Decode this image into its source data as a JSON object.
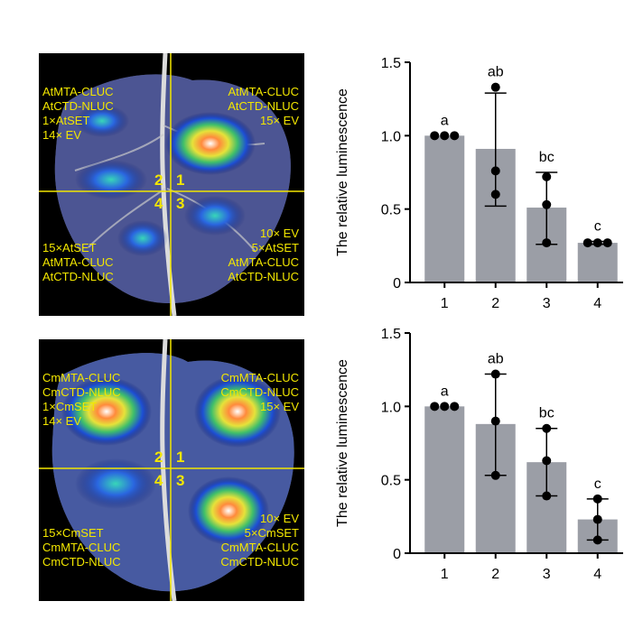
{
  "figure": {
    "top_image": {
      "labels": {
        "top_left": [
          "AtMTA-CLUC",
          "AtCTD-NLUC",
          "1×AtSET",
          "14× EV"
        ],
        "top_right": [
          "AtMTA-CLUC",
          "AtCTD-NLUC",
          "15× EV"
        ],
        "bottom_left": [
          "15×AtSET",
          "AtMTA-CLUC",
          "AtCTD-NLUC"
        ],
        "bottom_right": [
          "10× EV",
          "5×AtSET",
          "AtMTA-CLUC",
          "AtCTD-NLUC"
        ]
      },
      "quadrant_numbers": {
        "q2": "2",
        "q1": "1",
        "q4": "4",
        "q3": "3"
      }
    },
    "bottom_image": {
      "labels": {
        "top_left": [
          "CmMTA-CLUC",
          "CmCTD-NLUC",
          "1×CmSET",
          "14× EV"
        ],
        "top_right": [
          "CmMTA-CLUC",
          "CmCTD-NLUC",
          "15× EV"
        ],
        "bottom_left": [
          "15×CmSET",
          "CmMTA-CLUC",
          "CmCTD-NLUC"
        ],
        "bottom_right": [
          "10× EV",
          "5×CmSET",
          "CmMTA-CLUC",
          "CmCTD-NLUC"
        ]
      },
      "quadrant_numbers": {
        "q2": "2",
        "q1": "1",
        "q4": "4",
        "q3": "3"
      }
    }
  },
  "colors": {
    "bar": "#9b9ea6",
    "point": "#000000",
    "axis": "#000000",
    "leaf_text": "#f2e600",
    "crosshair": "#f2e600"
  },
  "chart_data": [
    {
      "type": "bar",
      "categories": [
        "1",
        "2",
        "3",
        "4"
      ],
      "values": [
        1.0,
        0.91,
        0.51,
        0.27
      ],
      "error_low": [
        1.0,
        0.52,
        0.26,
        0.26
      ],
      "error_high": [
        1.0,
        1.29,
        0.75,
        0.28
      ],
      "points": [
        [
          1.0,
          1.0,
          1.0
        ],
        [
          1.33,
          0.76,
          0.6
        ],
        [
          0.72,
          0.53,
          0.27
        ],
        [
          0.27,
          0.27,
          0.27
        ]
      ],
      "letters": [
        "a",
        "ab",
        "bc",
        "c"
      ],
      "ylabel": "The relative luminescence",
      "yticks": [
        "0",
        "0.5",
        "1.0",
        "1.5"
      ],
      "ylim": [
        0,
        1.5
      ]
    },
    {
      "type": "bar",
      "categories": [
        "1",
        "2",
        "3",
        "4"
      ],
      "values": [
        1.0,
        0.88,
        0.62,
        0.23
      ],
      "error_low": [
        1.0,
        0.53,
        0.39,
        0.09
      ],
      "error_high": [
        1.0,
        1.22,
        0.85,
        0.37
      ],
      "points": [
        [
          1.0,
          1.0,
          1.0
        ],
        [
          1.22,
          0.9,
          0.53
        ],
        [
          0.85,
          0.63,
          0.39
        ],
        [
          0.37,
          0.23,
          0.09
        ]
      ],
      "letters": [
        "a",
        "ab",
        "bc",
        "c"
      ],
      "ylabel": "The relative luminescence",
      "yticks": [
        "0",
        "0.5",
        "1.0",
        "1.5"
      ],
      "ylim": [
        0,
        1.5
      ]
    }
  ]
}
